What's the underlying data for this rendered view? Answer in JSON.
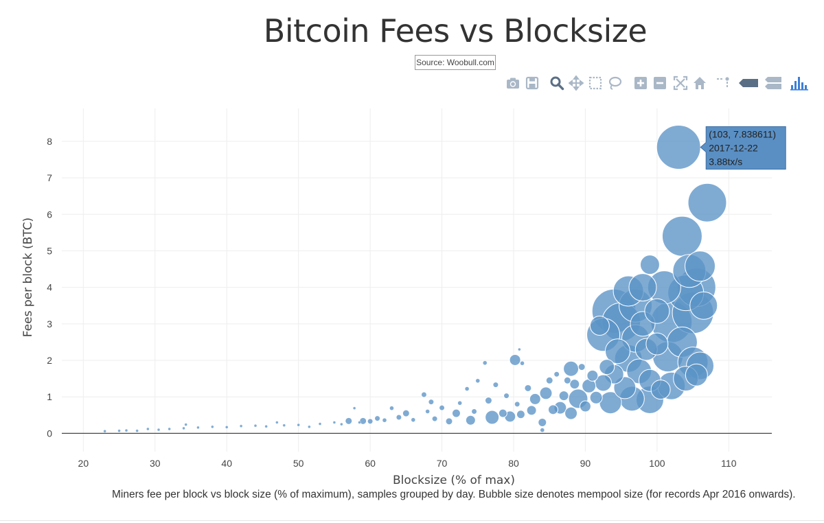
{
  "header": {
    "title": "Bitcoin Fees vs Blocksize",
    "source": "Source: Woobull.com"
  },
  "modebar": {
    "buttons": [
      {
        "name": "camera-icon",
        "label": "Download plot as a png"
      },
      {
        "name": "save-icon",
        "label": "Save and edit plot in cloud"
      },
      {
        "name": "zoom-icon",
        "label": "Zoom",
        "active": true
      },
      {
        "name": "pan-icon",
        "label": "Pan"
      },
      {
        "name": "box-select-icon",
        "label": "Box Select"
      },
      {
        "name": "lasso-select-icon",
        "label": "Lasso Select"
      },
      {
        "name": "zoom-in-icon",
        "label": "Zoom in"
      },
      {
        "name": "zoom-out-icon",
        "label": "Zoom out"
      },
      {
        "name": "autoscale-icon",
        "label": "Autoscale"
      },
      {
        "name": "reset-axes-icon",
        "label": "Reset axes"
      },
      {
        "name": "spikelines-icon",
        "label": "Toggle Spike Lines"
      },
      {
        "name": "hover-closest-icon",
        "label": "Show closest data on hover"
      },
      {
        "name": "hover-compare-icon",
        "label": "Compare data on hover"
      },
      {
        "name": "plotly-logo-icon",
        "label": "Produced with Plotly"
      }
    ]
  },
  "caption": "Miners fee per block vs block size (% of maximum), samples grouped by day. Bubble size denotes mempool size (for records Apr 2016 onwards).",
  "tooltip": {
    "line1": "(103, 7.838611)",
    "line2": "2017-12-22",
    "line3": "3.88tx/s",
    "x": 103,
    "y": 7.838611
  },
  "colors": {
    "marker": "#5b93c7",
    "marker_line": "#ffffff",
    "grid": "#eeeeee",
    "tooltip_bg": "#5a8fc4",
    "modebar_icon": "#a9b7c6",
    "modebar_active": "#5a6f86",
    "plotly_logo": "#3d7fd8"
  },
  "chart_data": {
    "type": "scatter",
    "mode": "bubble",
    "xlabel": "Blocksize (% of max)",
    "ylabel": "Fees per block (BTC)",
    "xlim": [
      17,
      116
    ],
    "ylim": [
      -0.5,
      8.9
    ],
    "x_ticks": [
      20,
      30,
      40,
      50,
      60,
      70,
      80,
      90,
      100,
      110
    ],
    "y_ticks": [
      0,
      1,
      2,
      3,
      4,
      5,
      6,
      7,
      8
    ],
    "grid": true,
    "size_meaning": "mempool size",
    "points": [
      {
        "x": 23,
        "y": 0.06,
        "s": 2
      },
      {
        "x": 25,
        "y": 0.07,
        "s": 2
      },
      {
        "x": 26,
        "y": 0.08,
        "s": 2
      },
      {
        "x": 27.5,
        "y": 0.07,
        "s": 2
      },
      {
        "x": 29,
        "y": 0.12,
        "s": 2
      },
      {
        "x": 30.5,
        "y": 0.1,
        "s": 2
      },
      {
        "x": 32,
        "y": 0.12,
        "s": 2
      },
      {
        "x": 34,
        "y": 0.14,
        "s": 2
      },
      {
        "x": 34.3,
        "y": 0.24,
        "s": 2
      },
      {
        "x": 36,
        "y": 0.16,
        "s": 2
      },
      {
        "x": 38,
        "y": 0.18,
        "s": 2
      },
      {
        "x": 40,
        "y": 0.17,
        "s": 2
      },
      {
        "x": 42,
        "y": 0.2,
        "s": 2
      },
      {
        "x": 44,
        "y": 0.21,
        "s": 2
      },
      {
        "x": 45.5,
        "y": 0.19,
        "s": 2
      },
      {
        "x": 47,
        "y": 0.3,
        "s": 2
      },
      {
        "x": 48,
        "y": 0.22,
        "s": 2
      },
      {
        "x": 50,
        "y": 0.23,
        "s": 2
      },
      {
        "x": 51.5,
        "y": 0.18,
        "s": 2
      },
      {
        "x": 53,
        "y": 0.26,
        "s": 2
      },
      {
        "x": 55,
        "y": 0.3,
        "s": 2
      },
      {
        "x": 56,
        "y": 0.25,
        "s": 2
      },
      {
        "x": 57,
        "y": 0.34,
        "s": 5
      },
      {
        "x": 57.8,
        "y": 0.69,
        "s": 2
      },
      {
        "x": 58.5,
        "y": 0.3,
        "s": 2
      },
      {
        "x": 59,
        "y": 0.34,
        "s": 5
      },
      {
        "x": 60,
        "y": 0.33,
        "s": 4
      },
      {
        "x": 61,
        "y": 0.41,
        "s": 4
      },
      {
        "x": 62,
        "y": 0.36,
        "s": 3
      },
      {
        "x": 63,
        "y": 0.69,
        "s": 3
      },
      {
        "x": 64,
        "y": 0.44,
        "s": 4
      },
      {
        "x": 65,
        "y": 0.55,
        "s": 5
      },
      {
        "x": 66,
        "y": 0.37,
        "s": 3
      },
      {
        "x": 67.5,
        "y": 1.06,
        "s": 4
      },
      {
        "x": 68,
        "y": 0.6,
        "s": 3
      },
      {
        "x": 68.5,
        "y": 0.86,
        "s": 4
      },
      {
        "x": 69,
        "y": 0.4,
        "s": 4
      },
      {
        "x": 70,
        "y": 0.7,
        "s": 4
      },
      {
        "x": 71,
        "y": 0.33,
        "s": 5
      },
      {
        "x": 72,
        "y": 0.55,
        "s": 6
      },
      {
        "x": 72.5,
        "y": 0.83,
        "s": 3
      },
      {
        "x": 73.5,
        "y": 1.22,
        "s": 3
      },
      {
        "x": 74,
        "y": 0.36,
        "s": 7
      },
      {
        "x": 74.5,
        "y": 0.6,
        "s": 4
      },
      {
        "x": 75,
        "y": 1.44,
        "s": 3
      },
      {
        "x": 76,
        "y": 1.93,
        "s": 3
      },
      {
        "x": 76.5,
        "y": 0.9,
        "s": 5
      },
      {
        "x": 77,
        "y": 0.44,
        "s": 10
      },
      {
        "x": 77.5,
        "y": 1.33,
        "s": 4
      },
      {
        "x": 78.5,
        "y": 0.55,
        "s": 6
      },
      {
        "x": 79,
        "y": 1.03,
        "s": 4
      },
      {
        "x": 79.5,
        "y": 0.46,
        "s": 8
      },
      {
        "x": 80.2,
        "y": 2.01,
        "s": 8
      },
      {
        "x": 80.5,
        "y": 0.8,
        "s": 4
      },
      {
        "x": 80.8,
        "y": 2.3,
        "s": 2
      },
      {
        "x": 81,
        "y": 0.52,
        "s": 6
      },
      {
        "x": 81.2,
        "y": 1.92,
        "s": 3
      },
      {
        "x": 82,
        "y": 1.24,
        "s": 5
      },
      {
        "x": 82.5,
        "y": 0.63,
        "s": 7
      },
      {
        "x": 83,
        "y": 0.94,
        "s": 8
      },
      {
        "x": 84,
        "y": 0.3,
        "s": 6
      },
      {
        "x": 84,
        "y": 0.09,
        "s": 3
      },
      {
        "x": 84.5,
        "y": 1.1,
        "s": 9
      },
      {
        "x": 85,
        "y": 1.45,
        "s": 5
      },
      {
        "x": 85.5,
        "y": 0.65,
        "s": 7
      },
      {
        "x": 86,
        "y": 1.62,
        "s": 4
      },
      {
        "x": 86.5,
        "y": 0.7,
        "s": 9
      },
      {
        "x": 87,
        "y": 1.03,
        "s": 7
      },
      {
        "x": 87.5,
        "y": 1.45,
        "s": 5
      },
      {
        "x": 88,
        "y": 1.77,
        "s": 11
      },
      {
        "x": 88,
        "y": 0.55,
        "s": 9
      },
      {
        "x": 88.5,
        "y": 1.35,
        "s": 7
      },
      {
        "x": 89,
        "y": 0.95,
        "s": 14
      },
      {
        "x": 89.5,
        "y": 1.82,
        "s": 5
      },
      {
        "x": 90,
        "y": 0.74,
        "s": 8
      },
      {
        "x": 90.5,
        "y": 1.3,
        "s": 10
      },
      {
        "x": 91,
        "y": 1.58,
        "s": 8
      },
      {
        "x": 91.5,
        "y": 0.98,
        "s": 9
      },
      {
        "x": 92,
        "y": 2.95,
        "s": 14
      },
      {
        "x": 92.5,
        "y": 2.7,
        "s": 24
      },
      {
        "x": 92.5,
        "y": 1.38,
        "s": 12
      },
      {
        "x": 93,
        "y": 1.82,
        "s": 11
      },
      {
        "x": 93.5,
        "y": 0.84,
        "s": 16
      },
      {
        "x": 94,
        "y": 3.35,
        "s": 32
      },
      {
        "x": 94,
        "y": 1.62,
        "s": 14
      },
      {
        "x": 94.5,
        "y": 2.25,
        "s": 18
      },
      {
        "x": 95,
        "y": 3.05,
        "s": 28
      },
      {
        "x": 95.5,
        "y": 1.25,
        "s": 16
      },
      {
        "x": 96,
        "y": 3.9,
        "s": 22
      },
      {
        "x": 96,
        "y": 2.05,
        "s": 20
      },
      {
        "x": 96.5,
        "y": 0.95,
        "s": 18
      },
      {
        "x": 97,
        "y": 3.5,
        "s": 24
      },
      {
        "x": 97,
        "y": 2.6,
        "s": 20
      },
      {
        "x": 97.5,
        "y": 1.7,
        "s": 18
      },
      {
        "x": 98,
        "y": 4.0,
        "s": 20
      },
      {
        "x": 98,
        "y": 3.0,
        "s": 18
      },
      {
        "x": 98.5,
        "y": 2.3,
        "s": 16
      },
      {
        "x": 99,
        "y": 4.62,
        "s": 14
      },
      {
        "x": 99,
        "y": 1.45,
        "s": 16
      },
      {
        "x": 99,
        "y": 0.92,
        "s": 20
      },
      {
        "x": 100,
        "y": 3.35,
        "s": 18
      },
      {
        "x": 100,
        "y": 2.45,
        "s": 16
      },
      {
        "x": 100.5,
        "y": 1.2,
        "s": 14
      },
      {
        "x": 101,
        "y": 4.0,
        "s": 24
      },
      {
        "x": 101.5,
        "y": 2.1,
        "s": 22
      },
      {
        "x": 102,
        "y": 3.05,
        "s": 30
      },
      {
        "x": 102,
        "y": 1.3,
        "s": 20
      },
      {
        "x": 103,
        "y": 7.838611,
        "s": 32
      },
      {
        "x": 103.5,
        "y": 5.4,
        "s": 29
      },
      {
        "x": 103.5,
        "y": 2.5,
        "s": 22
      },
      {
        "x": 104,
        "y": 3.85,
        "s": 26
      },
      {
        "x": 104,
        "y": 1.5,
        "s": 18
      },
      {
        "x": 104.5,
        "y": 4.45,
        "s": 24
      },
      {
        "x": 105,
        "y": 3.3,
        "s": 30
      },
      {
        "x": 105,
        "y": 1.95,
        "s": 22
      },
      {
        "x": 105.5,
        "y": 4.0,
        "s": 28
      },
      {
        "x": 105.5,
        "y": 1.6,
        "s": 16
      },
      {
        "x": 106,
        "y": 4.58,
        "s": 22
      },
      {
        "x": 106,
        "y": 1.85,
        "s": 20
      },
      {
        "x": 106.5,
        "y": 3.5,
        "s": 20
      },
      {
        "x": 107,
        "y": 6.32,
        "s": 28
      }
    ]
  }
}
